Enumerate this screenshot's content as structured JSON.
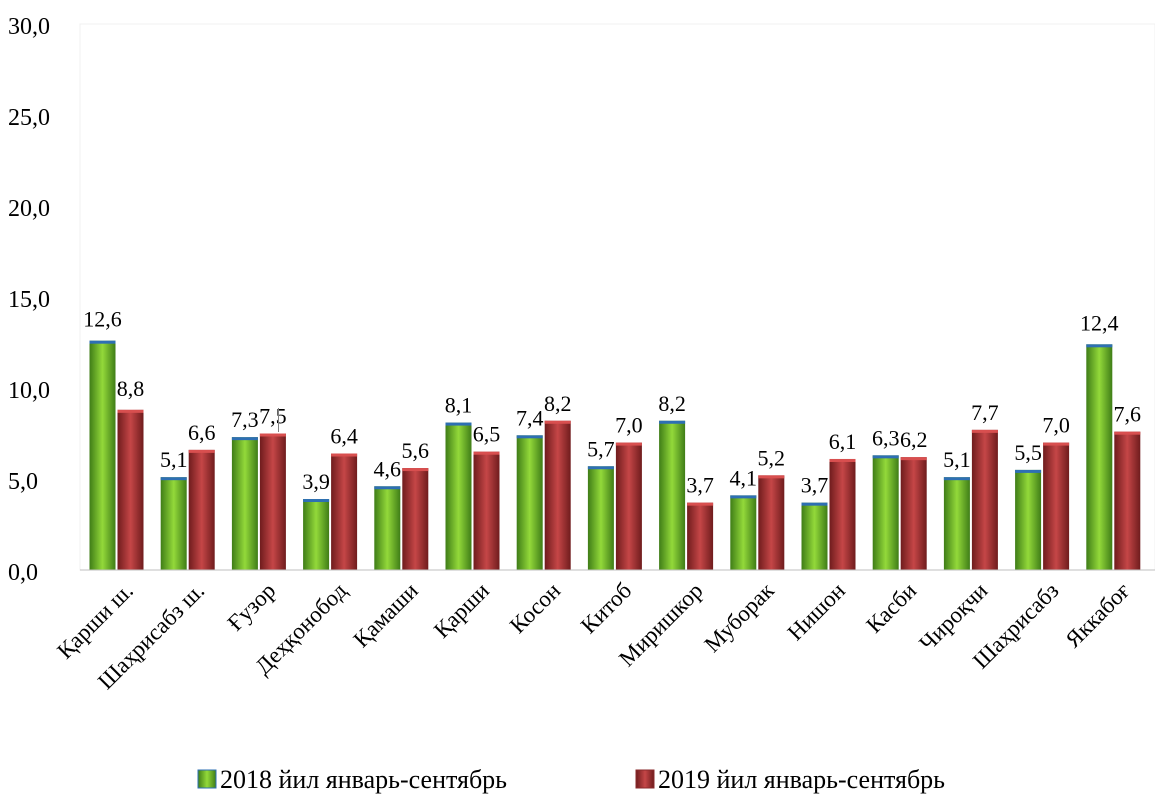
{
  "chart_data": {
    "type": "bar",
    "categories": [
      "Қарши ш.",
      "Шаҳрисабз ш.",
      "Ғузор",
      "Деҳқонобод",
      "Қамаши",
      "Қарши",
      "Косон",
      "Китоб",
      "Миришкор",
      "Муборак",
      "Нишон",
      "Касби",
      "Чироқчи",
      "Шаҳрисабз",
      "Яккабоғ"
    ],
    "series": [
      {
        "name": "2018 йил январь-сентябрь",
        "values": [
          12.6,
          5.1,
          7.3,
          3.9,
          4.6,
          8.1,
          7.4,
          5.7,
          8.2,
          4.1,
          3.7,
          6.3,
          5.1,
          5.5,
          12.4
        ],
        "labels": [
          "12,6",
          "5,1",
          "7,3",
          "3,9",
          "4,6",
          "8,1",
          "7,4",
          "5,7",
          "8,2",
          "4,1",
          "3,7",
          "6,3",
          "5,1",
          "5,5",
          "12,4"
        ],
        "color": "#7ccb2a"
      },
      {
        "name": "2019 йил январь-сентябрь",
        "values": [
          8.8,
          6.6,
          7.5,
          6.4,
          5.6,
          6.5,
          8.2,
          7.0,
          3.7,
          5.2,
          6.1,
          6.2,
          7.7,
          7.0,
          7.6
        ],
        "labels": [
          "8,8",
          "6,6",
          "7,5",
          "6,4",
          "5,6",
          "6,5",
          "8,2",
          "7,0",
          "3,7",
          "5,2",
          "6,1",
          "6,2",
          "7,7",
          "7,0",
          "7,6"
        ],
        "color": "#b5393a"
      }
    ],
    "yticks": [
      0,
      5,
      10,
      15,
      20,
      25,
      30
    ],
    "ytick_labels": [
      "0,0",
      "5,0",
      "10,0",
      "15,0",
      "20,0",
      "25,0",
      "30,0"
    ],
    "ylim": [
      0,
      30
    ],
    "grid": false,
    "legend": "bottom"
  }
}
